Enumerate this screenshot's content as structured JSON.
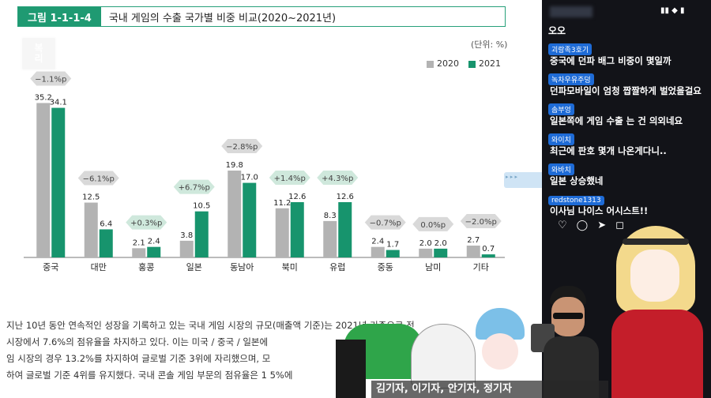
{
  "figure": {
    "tag": "그림 1-1-1-4",
    "title": "국내 게임의 수출 국가별 비중 비교(2020~2021년)",
    "unit": "(단위: %)",
    "legend": [
      {
        "name": "2020",
        "color": "#b3b3b3"
      },
      {
        "name": "2021",
        "color": "#17946d"
      }
    ]
  },
  "chart_data": {
    "type": "bar",
    "title": "국내 게임의 수출 국가별 비중 비교(2020~2021년)",
    "categories": [
      "중국",
      "대만",
      "홍콩",
      "일본",
      "동남아",
      "북미",
      "유럽",
      "중동",
      "남미",
      "기타"
    ],
    "series": [
      {
        "name": "2020",
        "values": [
          35.2,
          12.5,
          2.1,
          3.8,
          19.8,
          11.2,
          8.3,
          2.4,
          2.0,
          2.7
        ],
        "labels": [
          "35.2",
          "12.5",
          "2.1",
          "3.8",
          "19.8",
          "11.2",
          "8.3",
          "2.4",
          "2.0",
          "2.7"
        ]
      },
      {
        "name": "2021",
        "values": [
          34.1,
          6.4,
          2.4,
          10.5,
          17.0,
          12.6,
          12.6,
          1.7,
          2.0,
          0.7
        ],
        "labels": [
          "34.1",
          "6.4",
          "2.4",
          "10.5",
          "17.0",
          "12.6",
          "12.6",
          "1.7",
          "2.0",
          "0.7"
        ]
      }
    ],
    "changes": [
      "−1.1%p",
      "−6.1%p",
      "+0.3%p",
      "+6.7%p",
      "−2.8%p",
      "+1.4%p",
      "+4.3%p",
      "−0.7%p",
      "0.0%p",
      "−2.0%p"
    ],
    "change_colors": {
      "increase": "#cfe8dc",
      "decrease": "#d9d9d9"
    },
    "ylim": [
      0,
      36
    ],
    "xlabel": "",
    "ylabel": "",
    "legend_position": "top-right"
  },
  "paragraph": {
    "lines": [
      "지난 10년 동안 연속적인 성장을 기록하고 있는 국내 게임 시장의 규모(매출액 기준)는 2021년 기준으로 전",
      "시장에서 7.6%의 점유율을 차지하고 있다. 이는 미국 / 중국 / 일본에",
      "임 시장의 경우 13.2%를 차지하여 글로벌 기준 3위에 자리했으며, 모",
      "하여 글로벌 기준 4위를 유지했다. 국내 콘솔 게임 부문의 점유율은 1 5%에"
    ]
  },
  "watermark": {
    "line1": "복",
    "line2": "리"
  },
  "phone": {
    "status": "▮▮ ◆ ▮",
    "first_line": "오오",
    "messages": [
      {
        "user": "괴랑족3호기",
        "text": "중국에 던파 배그 비중이 몇일까"
      },
      {
        "user": "녹차우유주덩",
        "text": "던파모바일이 엄청 짭짤하게 벌었을걸요"
      },
      {
        "user": "솜부엉",
        "text": "일본쪽에 게임 수출 는 건 의외네요"
      },
      {
        "user": "와이치",
        "text": "최근에 판호 몇개 나온게다니.."
      },
      {
        "user": "와바치",
        "text": "일본 상승했네"
      },
      {
        "user": "redstone1313",
        "text": "이사님 나이스 어시스트!!"
      }
    ],
    "actions": [
      "♡",
      "◯",
      "➤",
      "◻"
    ]
  },
  "caption": "김기자, 이기자, 안기자, 정기자"
}
